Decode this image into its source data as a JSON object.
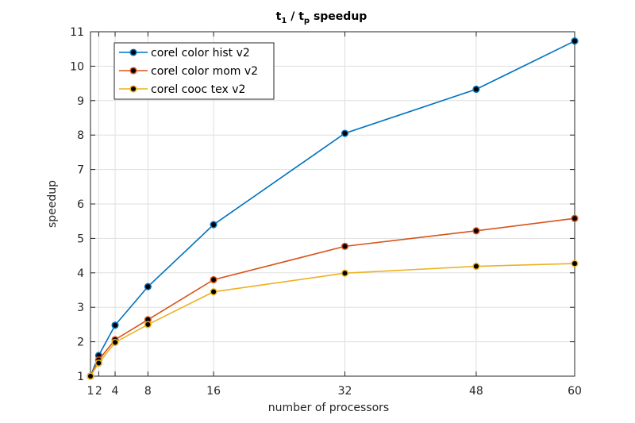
{
  "chart_data": {
    "type": "line",
    "title": {
      "t": "t",
      "sub1": "1",
      "sep": " / t",
      "sub2": "p",
      "rest": " speedup"
    },
    "xlabel": "number of processors",
    "ylabel": "speedup",
    "xlim": [
      1,
      60
    ],
    "ylim": [
      1,
      11
    ],
    "xticks": [
      1,
      2,
      4,
      8,
      16,
      32,
      48,
      60
    ],
    "yticks": [
      1,
      2,
      3,
      4,
      5,
      6,
      7,
      8,
      9,
      10,
      11
    ],
    "grid": true,
    "legend_position": "top-left",
    "x": [
      1,
      2,
      4,
      8,
      16,
      32,
      48,
      60
    ],
    "series": [
      {
        "name": "corel color hist v2",
        "color": "#0072bd",
        "values": [
          1,
          1.6,
          2.48,
          3.6,
          5.4,
          8.05,
          9.33,
          10.73
        ]
      },
      {
        "name": "corel color mom v2",
        "color": "#d95319",
        "values": [
          1,
          1.47,
          2.06,
          2.64,
          3.8,
          4.77,
          5.22,
          5.58
        ]
      },
      {
        "name": "corel cooc tex v2",
        "color": "#edb120",
        "values": [
          1,
          1.38,
          1.98,
          2.5,
          3.45,
          3.99,
          4.19,
          4.27
        ]
      }
    ]
  }
}
